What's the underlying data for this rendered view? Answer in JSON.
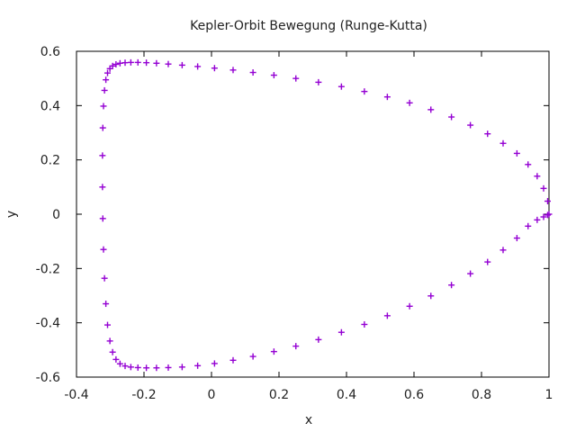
{
  "chart_data": {
    "type": "scatter",
    "title": "Kepler-Orbit Bewegung (Runge-Kutta)",
    "xlabel": "x",
    "ylabel": "y",
    "xlim": [
      -0.4,
      1.0
    ],
    "ylim": [
      -0.6,
      0.6
    ],
    "x_ticks": [
      -0.4,
      -0.2,
      0,
      0.2,
      0.4,
      0.6,
      0.8,
      1.0
    ],
    "x_tick_labels": [
      "-0.4",
      "-0.2",
      "0",
      "0.2",
      "0.4",
      "0.6",
      "0.8",
      "1"
    ],
    "y_ticks": [
      -0.6,
      -0.4,
      -0.2,
      0,
      0.2,
      0.4,
      0.6
    ],
    "y_tick_labels": [
      "-0.6",
      "-0.4",
      "-0.2",
      "0",
      "0.2",
      "0.4",
      "0.6"
    ],
    "grid": false,
    "legend": "none",
    "marker": "plus",
    "series": [
      {
        "color": "#9400d3",
        "x": [
          1.0,
          0.996,
          0.984,
          0.965,
          0.938,
          0.905,
          0.864,
          0.818,
          0.767,
          0.711,
          0.65,
          0.587,
          0.521,
          0.453,
          0.385,
          0.317,
          0.25,
          0.185,
          0.123,
          0.064,
          0.009,
          -0.041,
          -0.087,
          -0.128,
          -0.163,
          -0.193,
          -0.218,
          -0.239,
          -0.256,
          -0.271,
          -0.283,
          -0.293,
          -0.301,
          -0.308,
          -0.313,
          -0.317,
          -0.32,
          -0.322,
          -0.323,
          -0.323,
          -0.322,
          -0.32,
          -0.317,
          -0.313,
          -0.308,
          -0.301,
          -0.293,
          -0.283,
          -0.271,
          -0.256,
          -0.239,
          -0.218,
          -0.193,
          -0.163,
          -0.128,
          -0.087,
          -0.041,
          0.009,
          0.064,
          0.123,
          0.185,
          0.25,
          0.317,
          0.385,
          0.453,
          0.521,
          0.587,
          0.65,
          0.711,
          0.767,
          0.818,
          0.864,
          0.905,
          0.938,
          0.965,
          0.984,
          0.996
        ],
        "y": [
          0.0,
          0.048,
          0.095,
          0.14,
          0.183,
          0.224,
          0.261,
          0.296,
          0.328,
          0.358,
          0.385,
          0.41,
          0.432,
          0.452,
          0.47,
          0.486,
          0.5,
          0.512,
          0.522,
          0.531,
          0.538,
          0.544,
          0.549,
          0.553,
          0.556,
          0.558,
          0.559,
          0.559,
          0.558,
          0.556,
          0.552,
          0.546,
          0.536,
          0.52,
          0.495,
          0.456,
          0.398,
          0.318,
          0.216,
          0.1,
          -0.016,
          -0.13,
          -0.236,
          -0.33,
          -0.408,
          -0.467,
          -0.508,
          -0.535,
          -0.551,
          -0.559,
          -0.563,
          -0.565,
          -0.566,
          -0.566,
          -0.565,
          -0.563,
          -0.558,
          -0.55,
          -0.538,
          -0.524,
          -0.506,
          -0.486,
          -0.462,
          -0.435,
          -0.406,
          -0.374,
          -0.339,
          -0.301,
          -0.261,
          -0.219,
          -0.176,
          -0.132,
          -0.088,
          -0.044,
          -0.021,
          -0.01,
          -0.003
        ]
      }
    ]
  }
}
